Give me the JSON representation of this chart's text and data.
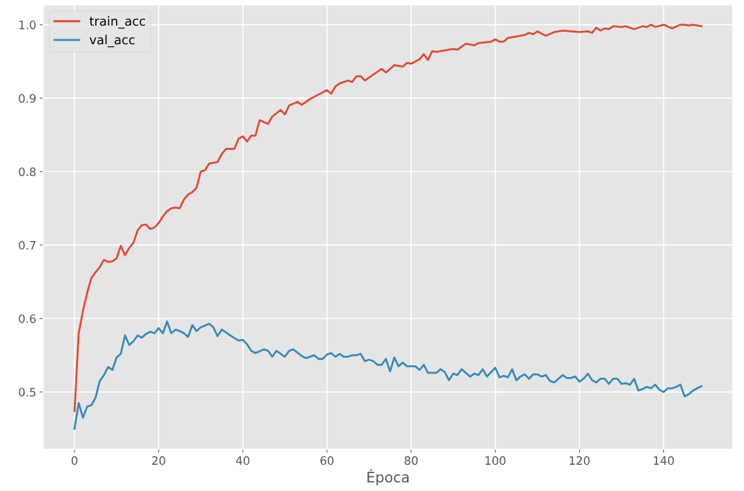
{
  "chart_data": {
    "type": "line",
    "xlabel": "Época",
    "xlim": [
      -7.45,
      156.45
    ],
    "xticks": [
      0,
      20,
      40,
      60,
      80,
      100,
      120,
      140
    ],
    "ylim": [
      0.422,
      1.027
    ],
    "yticks": [
      0.5,
      0.6,
      0.7,
      0.8,
      0.9,
      {
        "value": 1.0,
        "label": "1.0"
      }
    ],
    "grid": true,
    "legend": "top left",
    "marker": "none",
    "line_style": "solid",
    "series": [
      {
        "name": "train_acc",
        "color": "#e24a33",
        "x": [
          0,
          1,
          2,
          3,
          4,
          5,
          6,
          7,
          8,
          9,
          10,
          11,
          12,
          13,
          14,
          15,
          16,
          17,
          18,
          19,
          20,
          21,
          22,
          23,
          24,
          25,
          26,
          27,
          28,
          29,
          30,
          31,
          32,
          34,
          35,
          36,
          38,
          39,
          40,
          41,
          42,
          43,
          44,
          46,
          47,
          49,
          50,
          51,
          53,
          54,
          56,
          58,
          60,
          61,
          62,
          63,
          65,
          66,
          67,
          68,
          69,
          72,
          73,
          74,
          76,
          78,
          79,
          80,
          82,
          83,
          84,
          85,
          86,
          90,
          91,
          93,
          95,
          96,
          99,
          100,
          101,
          102,
          103,
          105,
          107,
          108,
          109,
          110,
          112,
          114,
          116,
          118,
          120,
          122,
          123,
          124,
          125,
          126,
          127,
          128,
          130,
          131,
          133,
          135,
          136,
          137,
          138,
          140,
          142,
          144,
          145,
          146,
          147,
          149
        ],
        "values": [
          0.474,
          0.58,
          0.61,
          0.635,
          0.655,
          0.663,
          0.67,
          0.68,
          0.677,
          0.678,
          0.682,
          0.699,
          0.686,
          0.696,
          0.703,
          0.72,
          0.727,
          0.728,
          0.722,
          0.724,
          0.73,
          0.739,
          0.746,
          0.75,
          0.751,
          0.75,
          0.762,
          0.769,
          0.772,
          0.778,
          0.8,
          0.802,
          0.811,
          0.813,
          0.824,
          0.831,
          0.831,
          0.845,
          0.848,
          0.841,
          0.849,
          0.849,
          0.87,
          0.865,
          0.875,
          0.884,
          0.878,
          0.89,
          0.895,
          0.891,
          0.899,
          0.905,
          0.911,
          0.906,
          0.916,
          0.92,
          0.924,
          0.922,
          0.93,
          0.93,
          0.924,
          0.936,
          0.94,
          0.935,
          0.945,
          0.943,
          0.948,
          0.947,
          0.953,
          0.96,
          0.952,
          0.964,
          0.963,
          0.967,
          0.966,
          0.974,
          0.972,
          0.975,
          0.977,
          0.98,
          0.977,
          0.977,
          0.982,
          0.984,
          0.986,
          0.989,
          0.987,
          0.991,
          0.985,
          0.99,
          0.992,
          0.991,
          0.99,
          0.991,
          0.989,
          0.996,
          0.992,
          0.995,
          0.994,
          0.998,
          0.997,
          0.998,
          0.994,
          0.998,
          0.997,
          1.0,
          0.997,
          1.0,
          0.995,
          1.0,
          1.0,
          0.999,
          1.0,
          0.998
        ]
      },
      {
        "name": "val_acc",
        "color": "#348abd",
        "x": [
          0,
          1,
          2,
          3,
          4,
          5,
          6,
          7,
          8,
          9,
          10,
          11,
          12,
          13,
          14,
          15,
          16,
          17,
          18,
          19,
          20,
          21,
          22,
          23,
          24,
          25,
          26,
          27,
          28,
          29,
          30,
          32,
          33,
          34,
          35,
          37,
          39,
          40,
          41,
          42,
          43,
          45,
          46,
          47,
          48,
          50,
          51,
          52,
          54,
          55,
          57,
          58,
          59,
          60,
          61,
          62,
          63,
          64,
          65,
          66,
          67,
          68,
          69,
          70,
          71,
          72,
          73,
          74,
          75,
          76,
          77,
          78,
          79,
          81,
          82,
          83,
          84,
          86,
          87,
          88,
          89,
          90,
          91,
          92,
          94,
          95,
          96,
          97,
          98,
          100,
          101,
          102,
          103,
          104,
          105,
          106,
          107,
          108,
          109,
          110,
          111,
          112,
          113,
          114,
          115,
          116,
          117,
          118,
          119,
          120,
          121,
          122,
          123,
          124,
          125,
          126,
          127,
          128,
          129,
          130,
          131,
          132,
          133,
          134,
          135,
          136,
          137,
          138,
          139,
          140,
          141,
          142,
          143,
          144,
          145,
          146,
          147,
          148,
          149
        ],
        "values": [
          0.45,
          0.485,
          0.465,
          0.48,
          0.482,
          0.492,
          0.515,
          0.523,
          0.534,
          0.53,
          0.547,
          0.552,
          0.577,
          0.564,
          0.569,
          0.577,
          0.574,
          0.579,
          0.582,
          0.58,
          0.587,
          0.58,
          0.596,
          0.58,
          0.585,
          0.583,
          0.58,
          0.575,
          0.591,
          0.583,
          0.588,
          0.593,
          0.588,
          0.576,
          0.585,
          0.577,
          0.57,
          0.571,
          0.565,
          0.556,
          0.553,
          0.558,
          0.556,
          0.548,
          0.556,
          0.548,
          0.556,
          0.558,
          0.549,
          0.546,
          0.55,
          0.545,
          0.545,
          0.551,
          0.553,
          0.548,
          0.552,
          0.548,
          0.548,
          0.55,
          0.55,
          0.552,
          0.542,
          0.544,
          0.542,
          0.537,
          0.537,
          0.545,
          0.528,
          0.547,
          0.535,
          0.54,
          0.535,
          0.535,
          0.53,
          0.537,
          0.526,
          0.526,
          0.531,
          0.527,
          0.516,
          0.525,
          0.523,
          0.531,
          0.521,
          0.525,
          0.523,
          0.531,
          0.521,
          0.533,
          0.52,
          0.522,
          0.52,
          0.531,
          0.516,
          0.521,
          0.524,
          0.518,
          0.524,
          0.524,
          0.521,
          0.523,
          0.515,
          0.513,
          0.518,
          0.523,
          0.519,
          0.519,
          0.521,
          0.514,
          0.518,
          0.525,
          0.516,
          0.513,
          0.518,
          0.518,
          0.511,
          0.518,
          0.518,
          0.511,
          0.512,
          0.51,
          0.518,
          0.502,
          0.504,
          0.507,
          0.505,
          0.51,
          0.503,
          0.5,
          0.505,
          0.505,
          0.507,
          0.51,
          0.494,
          0.497,
          0.502,
          0.505,
          0.508
        ]
      }
    ]
  }
}
